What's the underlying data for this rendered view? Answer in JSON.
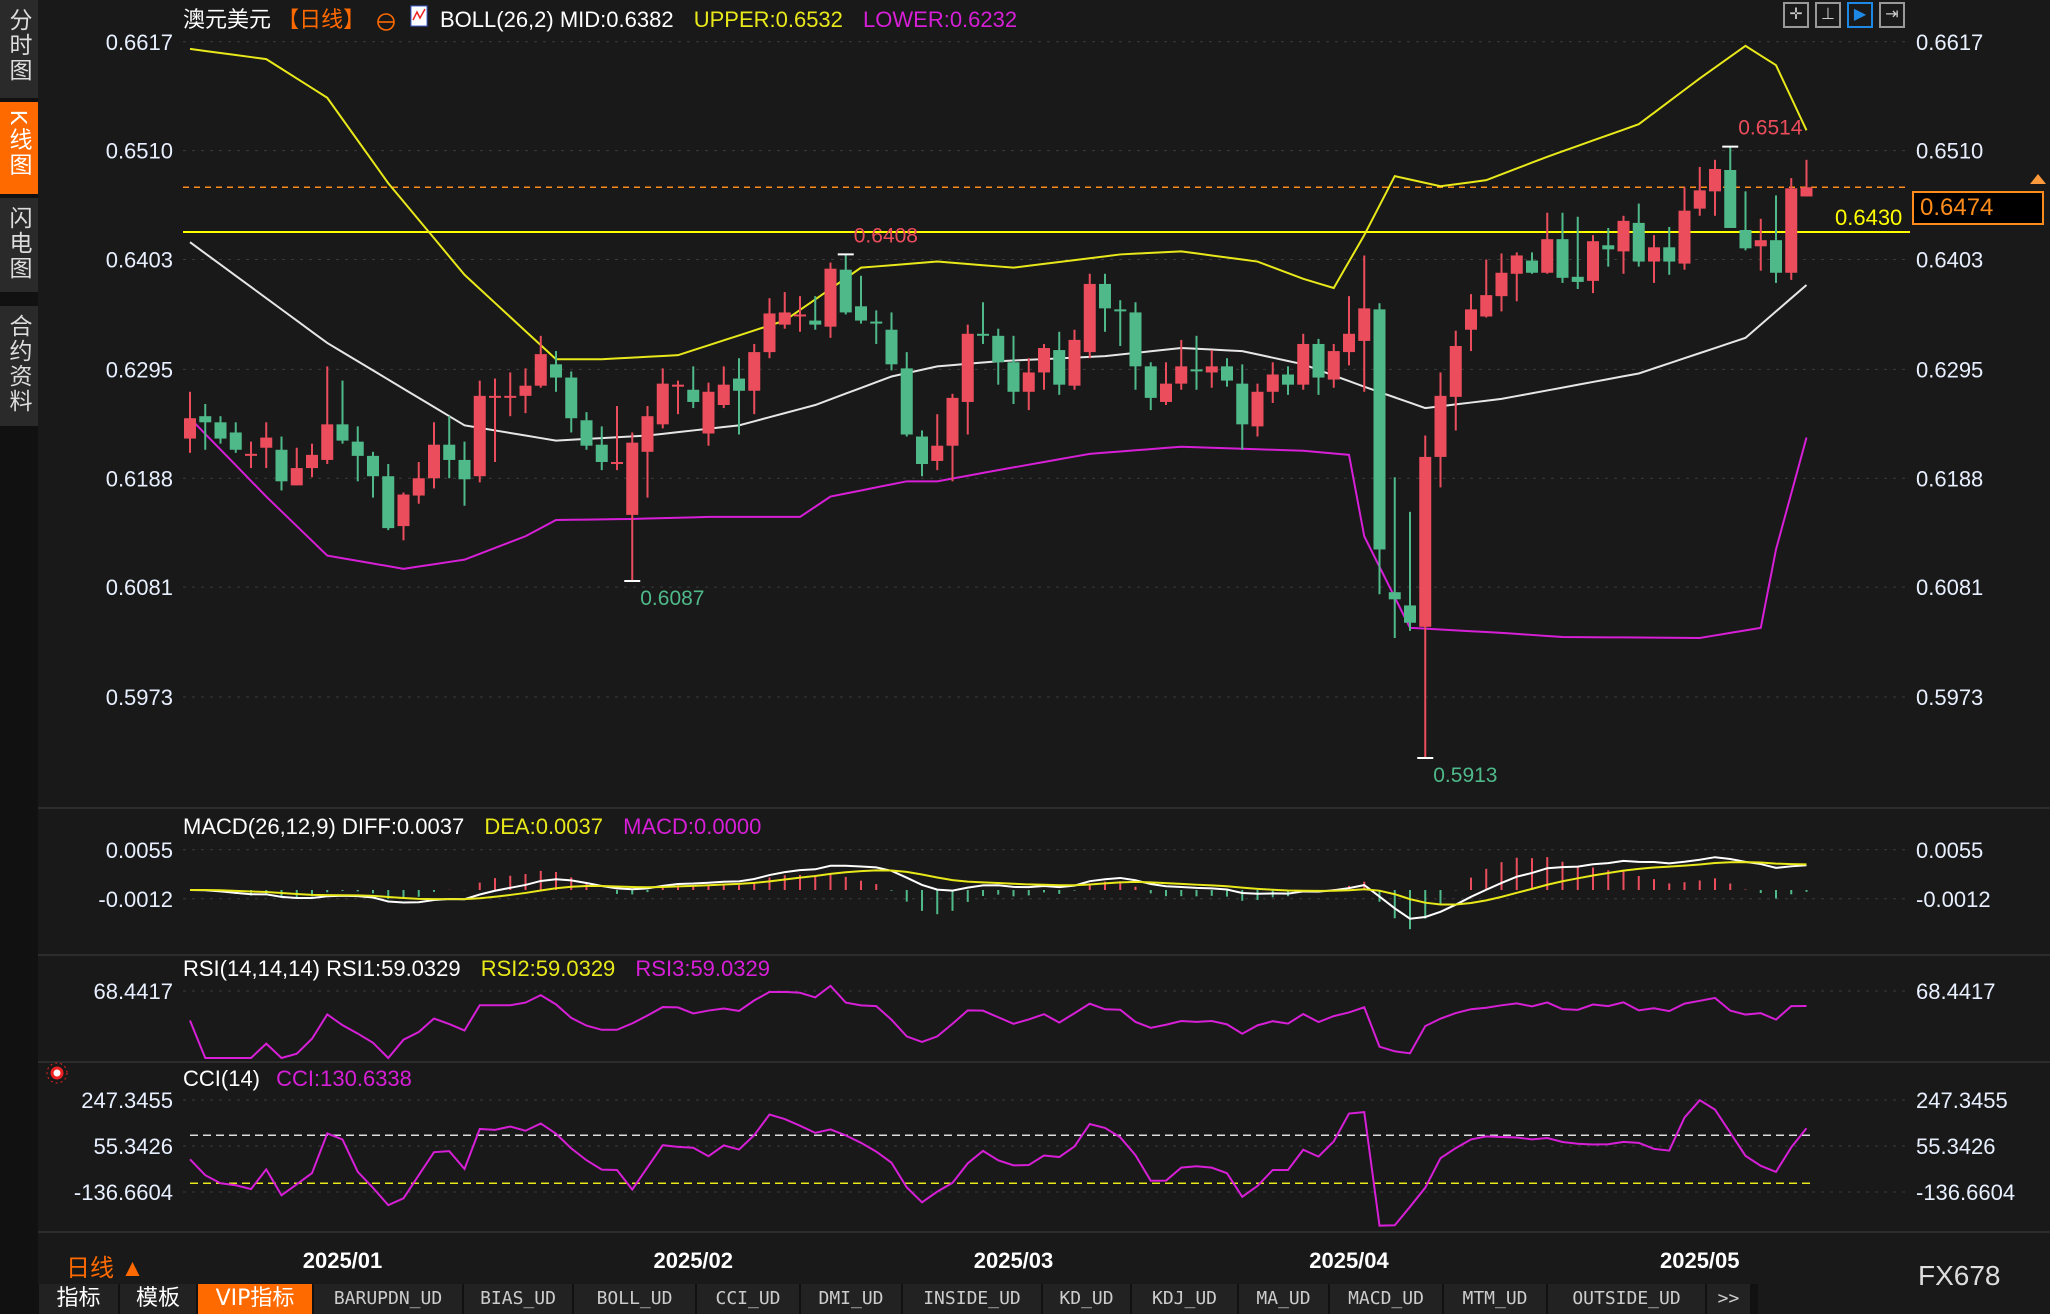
{
  "header": {
    "symbol": "澳元美元",
    "period": "【日线】",
    "boll_label": "BOLL(26,2) MID:0.6382",
    "boll_upper": "UPPER:0.6532",
    "boll_lower": "LOWER:0.6232"
  },
  "sidebar": {
    "items": [
      {
        "label": "分时图",
        "active": false
      },
      {
        "label": "K线图",
        "active": true
      },
      {
        "label": "闪电图",
        "active": false
      },
      {
        "label": "合约资料",
        "active": false
      }
    ]
  },
  "toolbar": {
    "icons": [
      "crosshair-icon",
      "range-select-icon",
      "cursor-mode-icon",
      "scroll-right-icon"
    ]
  },
  "price_axis": {
    "labels": [
      "0.6617",
      "0.6510",
      "0.6403",
      "0.6295",
      "0.6188",
      "0.6081",
      "0.5973"
    ]
  },
  "markers": {
    "high": "0.6514",
    "peak_feb": "0.6408",
    "low_feb": "0.6087",
    "low_apr": "0.5913",
    "hline": "0.6430",
    "last_price": "0.6474"
  },
  "macd": {
    "label": "MACD(26,12,9) DIFF:0.0037",
    "dea": "DEA:0.0037",
    "macd": "MACD:0.0000",
    "axis": [
      "0.0055",
      "-0.0012"
    ]
  },
  "rsi": {
    "label": "RSI(14,14,14) RSI1:59.0329",
    "rsi2": "RSI2:59.0329",
    "rsi3": "RSI3:59.0329",
    "axis": [
      "68.4417"
    ]
  },
  "cci": {
    "label": "CCI(14)",
    "value": "CCI:130.6338",
    "axis": [
      "247.3455",
      "55.3426",
      "-136.6604"
    ]
  },
  "x_axis": {
    "labels": [
      "2025/01",
      "2025/02",
      "2025/03",
      "2025/04",
      "2025/05"
    ]
  },
  "footer": {
    "period": "日线 ▲",
    "brand": "FX678"
  },
  "tabs": [
    "指标",
    "模板",
    "VIP指标",
    "BARUPDN_UD",
    "BIAS_UD",
    "BOLL_UD",
    "CCI_UD",
    "DMI_UD",
    "INSIDE_UD",
    "KD_UD",
    "KDJ_UD",
    "MA_UD",
    "MACD_UD",
    "MTM_UD",
    "OUTSIDE_UD",
    ">>"
  ],
  "active_tab": "VIP指标",
  "colors": {
    "up": "#eb4d5c",
    "down": "#4fb98a",
    "mid": "#e6e6e6",
    "upper": "#e8e81a",
    "lower": "#d61fd6",
    "hline": "#ffff00",
    "last": "#ff8c1a",
    "accent": "#ff6a00",
    "bg": "#191919"
  },
  "chart_data": {
    "type": "candlestick",
    "title": "澳元美元",
    "ylim": [
      0.5973,
      0.6617
    ],
    "ohlc": [
      [
        0.6227,
        0.6273,
        0.6213,
        0.6247
      ],
      [
        0.6249,
        0.6261,
        0.6216,
        0.6243
      ],
      [
        0.6243,
        0.6249,
        0.6222,
        0.6227
      ],
      [
        0.6233,
        0.6243,
        0.6213,
        0.6216
      ],
      [
        0.6211,
        0.6224,
        0.6198,
        0.6212
      ],
      [
        0.6218,
        0.6243,
        0.6198,
        0.6228
      ],
      [
        0.6216,
        0.6229,
        0.6176,
        0.6185
      ],
      [
        0.6181,
        0.6218,
        0.6181,
        0.6198
      ],
      [
        0.6198,
        0.6222,
        0.6189,
        0.6211
      ],
      [
        0.6206,
        0.6298,
        0.6202,
        0.6241
      ],
      [
        0.6241,
        0.6284,
        0.6222,
        0.6225
      ],
      [
        0.6224,
        0.6239,
        0.6185,
        0.621
      ],
      [
        0.621,
        0.6214,
        0.6169,
        0.619
      ],
      [
        0.619,
        0.6202,
        0.6137,
        0.6139
      ],
      [
        0.6141,
        0.6174,
        0.6127,
        0.6172
      ],
      [
        0.6171,
        0.6204,
        0.6163,
        0.6188
      ],
      [
        0.6188,
        0.6243,
        0.6178,
        0.6221
      ],
      [
        0.6221,
        0.6249,
        0.6188,
        0.6206
      ],
      [
        0.6206,
        0.6224,
        0.6161,
        0.6187
      ],
      [
        0.619,
        0.6284,
        0.6184,
        0.6269
      ],
      [
        0.6268,
        0.6286,
        0.6204,
        0.6269
      ],
      [
        0.6268,
        0.6292,
        0.6249,
        0.6269
      ],
      [
        0.6269,
        0.6296,
        0.6252,
        0.6279
      ],
      [
        0.6279,
        0.6328,
        0.6277,
        0.631
      ],
      [
        0.63,
        0.6313,
        0.6273,
        0.6287
      ],
      [
        0.6287,
        0.6293,
        0.6233,
        0.6247
      ],
      [
        0.6245,
        0.6253,
        0.6216,
        0.622
      ],
      [
        0.6221,
        0.6239,
        0.6196,
        0.6204
      ],
      [
        0.6203,
        0.6259,
        0.6196,
        0.6204
      ],
      [
        0.6152,
        0.6233,
        0.6087,
        0.6223
      ],
      [
        0.6214,
        0.6259,
        0.6169,
        0.6249
      ],
      [
        0.6241,
        0.6296,
        0.6237,
        0.6281
      ],
      [
        0.6279,
        0.6284,
        0.6251,
        0.628
      ],
      [
        0.6275,
        0.6298,
        0.6257,
        0.6263
      ],
      [
        0.6232,
        0.6282,
        0.622,
        0.6273
      ],
      [
        0.626,
        0.6298,
        0.6257,
        0.628
      ],
      [
        0.6286,
        0.6306,
        0.6231,
        0.6274
      ],
      [
        0.6274,
        0.632,
        0.6251,
        0.6312
      ],
      [
        0.6312,
        0.6365,
        0.6306,
        0.635
      ],
      [
        0.6339,
        0.6371,
        0.6335,
        0.6351
      ],
      [
        0.6348,
        0.6367,
        0.6332,
        0.6349
      ],
      [
        0.6343,
        0.6367,
        0.6334,
        0.6339
      ],
      [
        0.6337,
        0.64,
        0.6326,
        0.6394
      ],
      [
        0.6393,
        0.6408,
        0.6349,
        0.6351
      ],
      [
        0.6357,
        0.6387,
        0.634,
        0.6343
      ],
      [
        0.6342,
        0.6353,
        0.632,
        0.6341
      ],
      [
        0.6334,
        0.6351,
        0.6294,
        0.63
      ],
      [
        0.6296,
        0.6312,
        0.6229,
        0.6231
      ],
      [
        0.6229,
        0.6235,
        0.619,
        0.6202
      ],
      [
        0.6205,
        0.6251,
        0.6196,
        0.622
      ],
      [
        0.622,
        0.6271,
        0.6185,
        0.6267
      ],
      [
        0.6263,
        0.6339,
        0.6231,
        0.633
      ],
      [
        0.633,
        0.6361,
        0.632,
        0.6329
      ],
      [
        0.6328,
        0.6335,
        0.628,
        0.6302
      ],
      [
        0.6302,
        0.6328,
        0.6261,
        0.6273
      ],
      [
        0.6273,
        0.6306,
        0.6255,
        0.6292
      ],
      [
        0.6292,
        0.632,
        0.6275,
        0.6316
      ],
      [
        0.6314,
        0.6332,
        0.627,
        0.628
      ],
      [
        0.6279,
        0.6334,
        0.6275,
        0.6324
      ],
      [
        0.6312,
        0.6389,
        0.6306,
        0.6379
      ],
      [
        0.6379,
        0.6389,
        0.6332,
        0.6355
      ],
      [
        0.6354,
        0.6363,
        0.6318,
        0.6353
      ],
      [
        0.6351,
        0.6361,
        0.6275,
        0.6298
      ],
      [
        0.6298,
        0.6302,
        0.6255,
        0.6267
      ],
      [
        0.6263,
        0.6302,
        0.626,
        0.6281
      ],
      [
        0.6281,
        0.6324,
        0.6275,
        0.6298
      ],
      [
        0.6295,
        0.6328,
        0.6275,
        0.6294
      ],
      [
        0.6292,
        0.6314,
        0.6277,
        0.6298
      ],
      [
        0.6298,
        0.6306,
        0.6278,
        0.6284
      ],
      [
        0.6281,
        0.63,
        0.6216,
        0.6241
      ],
      [
        0.6239,
        0.6281,
        0.6229,
        0.6273
      ],
      [
        0.6273,
        0.6302,
        0.6262,
        0.629
      ],
      [
        0.629,
        0.6298,
        0.627,
        0.628
      ],
      [
        0.628,
        0.633,
        0.6275,
        0.632
      ],
      [
        0.632,
        0.6325,
        0.627,
        0.6287
      ],
      [
        0.6285,
        0.632,
        0.6277,
        0.6313
      ],
      [
        0.6312,
        0.6367,
        0.6299,
        0.633
      ],
      [
        0.6323,
        0.6407,
        0.6273,
        0.6355
      ],
      [
        0.6354,
        0.636,
        0.6074,
        0.6118
      ],
      [
        0.6076,
        0.6189,
        0.6031,
        0.6069
      ],
      [
        0.6063,
        0.6155,
        0.6038,
        0.6046
      ],
      [
        0.6042,
        0.623,
        0.5913,
        0.6209
      ],
      [
        0.6209,
        0.6292,
        0.6179,
        0.6269
      ],
      [
        0.6268,
        0.6333,
        0.6235,
        0.6318
      ],
      [
        0.6334,
        0.6369,
        0.6313,
        0.6354
      ],
      [
        0.6347,
        0.6403,
        0.6346,
        0.6368
      ],
      [
        0.6367,
        0.6409,
        0.6352,
        0.639
      ],
      [
        0.6389,
        0.641,
        0.6362,
        0.6407
      ],
      [
        0.6402,
        0.641,
        0.6389,
        0.639
      ],
      [
        0.639,
        0.6449,
        0.6389,
        0.6423
      ],
      [
        0.6423,
        0.6449,
        0.638,
        0.6385
      ],
      [
        0.6386,
        0.6445,
        0.6374,
        0.6381
      ],
      [
        0.6382,
        0.6427,
        0.637,
        0.6421
      ],
      [
        0.6417,
        0.6434,
        0.6396,
        0.6413
      ],
      [
        0.6411,
        0.6446,
        0.6389,
        0.6441
      ],
      [
        0.6439,
        0.6458,
        0.6396,
        0.6401
      ],
      [
        0.6401,
        0.6427,
        0.638,
        0.6415
      ],
      [
        0.6415,
        0.6435,
        0.6388,
        0.6401
      ],
      [
        0.6399,
        0.6474,
        0.6393,
        0.6451
      ],
      [
        0.6453,
        0.6494,
        0.6446,
        0.6471
      ],
      [
        0.647,
        0.6501,
        0.6446,
        0.6492
      ],
      [
        0.6491,
        0.6514,
        0.6434,
        0.6434
      ],
      [
        0.6432,
        0.647,
        0.6412,
        0.6414
      ],
      [
        0.6416,
        0.6443,
        0.6392,
        0.6422
      ],
      [
        0.6422,
        0.6466,
        0.638,
        0.639
      ],
      [
        0.639,
        0.6483,
        0.6383,
        0.6473
      ],
      [
        0.6465,
        0.6501,
        0.6465,
        0.6474
      ]
    ],
    "boll_mid": [
      [
        0,
        0.642
      ],
      [
        9,
        0.6321
      ],
      [
        18,
        0.624
      ],
      [
        24,
        0.6225
      ],
      [
        30,
        0.623
      ],
      [
        36,
        0.624
      ],
      [
        41,
        0.626
      ],
      [
        46,
        0.6288
      ],
      [
        49,
        0.6298
      ],
      [
        53,
        0.6303
      ],
      [
        60,
        0.6308
      ],
      [
        65,
        0.6316
      ],
      [
        69,
        0.6313
      ],
      [
        73,
        0.63
      ],
      [
        77,
        0.6278
      ],
      [
        81,
        0.6257
      ],
      [
        86,
        0.6266
      ],
      [
        95,
        0.6291
      ],
      [
        102,
        0.6326
      ],
      [
        106,
        0.6378
      ]
    ],
    "boll_upper": [
      [
        0,
        0.661
      ],
      [
        5,
        0.66
      ],
      [
        9,
        0.6562
      ],
      [
        13,
        0.6478
      ],
      [
        18,
        0.6388
      ],
      [
        24,
        0.6305
      ],
      [
        27,
        0.6305
      ],
      [
        32,
        0.6309
      ],
      [
        39,
        0.6343
      ],
      [
        44,
        0.6395
      ],
      [
        49,
        0.6401
      ],
      [
        54,
        0.6395
      ],
      [
        61,
        0.6408
      ],
      [
        65,
        0.6411
      ],
      [
        70,
        0.6401
      ],
      [
        73,
        0.6384
      ],
      [
        75,
        0.6375
      ],
      [
        77,
        0.6427
      ],
      [
        79,
        0.6485
      ],
      [
        82,
        0.6475
      ],
      [
        85,
        0.6481
      ],
      [
        89,
        0.6504
      ],
      [
        95,
        0.6536
      ],
      [
        99,
        0.6581
      ],
      [
        102,
        0.6613
      ],
      [
        104,
        0.6594
      ],
      [
        106,
        0.653
      ]
    ],
    "boll_lower": [
      [
        0,
        0.6247
      ],
      [
        5,
        0.617
      ],
      [
        9,
        0.6112
      ],
      [
        14,
        0.6099
      ],
      [
        18,
        0.6108
      ],
      [
        22,
        0.6131
      ],
      [
        24,
        0.6147
      ],
      [
        29,
        0.6148
      ],
      [
        34,
        0.615
      ],
      [
        40,
        0.615
      ],
      [
        42,
        0.617
      ],
      [
        47,
        0.6185
      ],
      [
        49,
        0.6185
      ],
      [
        53,
        0.6196
      ],
      [
        59,
        0.6212
      ],
      [
        65,
        0.6219
      ],
      [
        73,
        0.6215
      ],
      [
        76,
        0.6211
      ],
      [
        77,
        0.6131
      ],
      [
        80,
        0.6041
      ],
      [
        86,
        0.6036
      ],
      [
        90,
        0.6032
      ],
      [
        99,
        0.6031
      ],
      [
        103,
        0.6041
      ],
      [
        104,
        0.6118
      ],
      [
        106,
        0.6228
      ]
    ],
    "hline": 0.643,
    "last": 0.6474,
    "annotations": [
      {
        "index": 101,
        "price": 0.6514,
        "kind": "high"
      },
      {
        "index": 43,
        "price": 0.6408,
        "kind": "high"
      },
      {
        "index": 29,
        "price": 0.6087,
        "kind": "low"
      },
      {
        "index": 81,
        "price": 0.5913,
        "kind": "low"
      }
    ],
    "month_starts": {
      "2025/01": 10,
      "2025/02": 33,
      "2025/03": 54,
      "2025/04": 76,
      "2025/05": 99
    },
    "macd_params": [
      26,
      12,
      9
    ],
    "rsi_period": 14,
    "cci_period": 14,
    "cci_levels": [
      100,
      -100
    ]
  }
}
